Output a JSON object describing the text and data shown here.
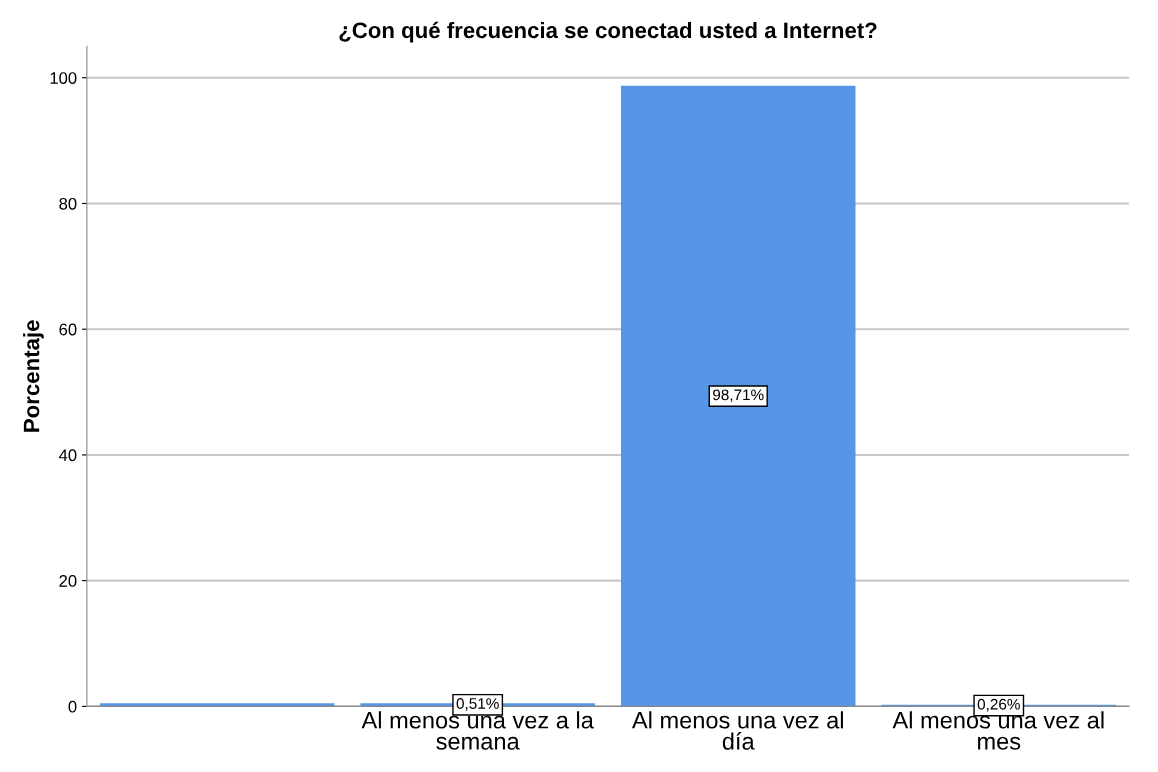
{
  "chart_data": {
    "type": "bar",
    "title": "¿Con qué frecuencia se conectad usted a Internet?",
    "ylabel": "Porcentaje",
    "categories": [
      null,
      "Al menos una vez a la semana",
      "Al menos una vez al día",
      "Al menos una vez al mes"
    ],
    "values": [
      0.5,
      0.51,
      98.71,
      0.26
    ],
    "value_labels": [
      null,
      "0,51%",
      "98,71%",
      "0,26%"
    ],
    "color": "#5596e6",
    "ylim": [
      0,
      105
    ],
    "yticks": [
      0,
      20,
      40,
      60,
      80,
      100
    ],
    "grid": "y"
  }
}
